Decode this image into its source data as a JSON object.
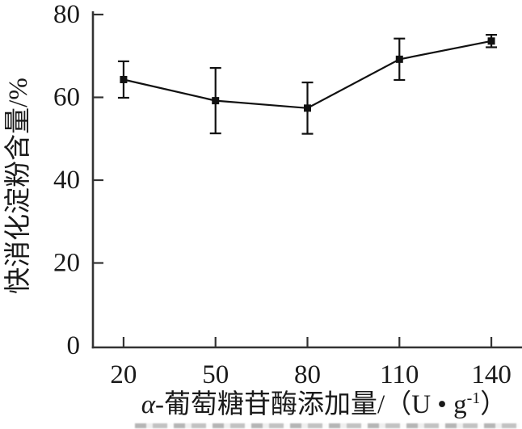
{
  "chart_data": {
    "type": "line",
    "title": "",
    "x": [
      20,
      50,
      80,
      110,
      140
    ],
    "series": [
      {
        "values": [
          64.3,
          59.2,
          57.4,
          69.2,
          73.6
        ],
        "errors": [
          4.4,
          7.9,
          6.2,
          5.0,
          1.5
        ],
        "marker": "filled-square",
        "color": "#111111"
      }
    ],
    "xlabel": "α-葡萄糖苷酶添加量/（U • g⁻¹）",
    "xlabel_parts": {
      "alpha": "α",
      "rest": "-葡萄糖苷酶添加量/（U • g",
      "sup": "-1",
      "suffix": "）"
    },
    "ylabel": "快消化淀粉含量/%",
    "xlim": [
      10,
      150
    ],
    "ylim": [
      0,
      80
    ],
    "x_ticks": [
      20,
      50,
      80,
      110,
      140
    ],
    "y_ticks": [
      0,
      20,
      40,
      60,
      80
    ],
    "grid": false,
    "legend": "none",
    "error_bars": true,
    "axis_color": "#333333",
    "data_color": "#111111",
    "text_color": "#1a1a1a",
    "background": "#ffffff"
  }
}
